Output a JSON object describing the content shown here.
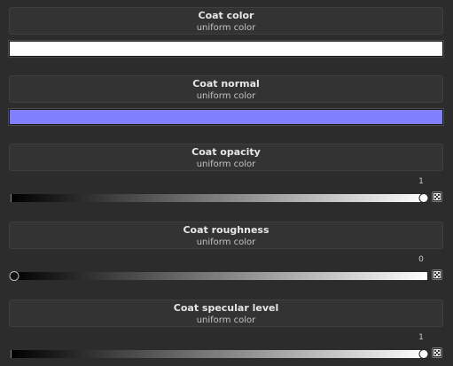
{
  "channels": [
    {
      "title": "Coat color",
      "subtitle": "uniform color",
      "swatch": "#ffffff"
    },
    {
      "title": "Coat normal",
      "subtitle": "uniform color",
      "swatch": "#8080ff"
    },
    {
      "title": "Coat opacity",
      "subtitle": "uniform color",
      "value": "1",
      "level": 1
    },
    {
      "title": "Coat roughness",
      "subtitle": "uniform color",
      "value": "0",
      "level": 0
    },
    {
      "title": "Coat specular level",
      "subtitle": "uniform color",
      "value": "1",
      "level": 1
    }
  ],
  "icons": {
    "random_button": "dice-icon"
  }
}
